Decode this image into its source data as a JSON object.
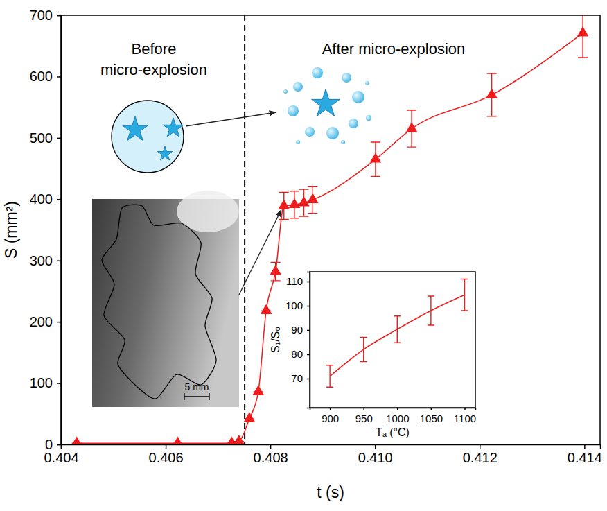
{
  "chart_data": [
    {
      "type": "line",
      "x_label": "t (s)",
      "y_label": "S (mm²)",
      "annotations": [
        "Before micro-explosion",
        "After micro-explosion",
        "5 mm"
      ],
      "x": [
        0.4043,
        0.40623,
        0.40726,
        0.4074,
        0.4076,
        0.40777,
        0.40792,
        0.4081,
        0.40826,
        0.40846,
        0.40864,
        0.40881,
        0.41001,
        0.4107,
        0.41223,
        0.41397
      ],
      "values": [
        2,
        2,
        2,
        5,
        42,
        86,
        218,
        282,
        389,
        391,
        394,
        399,
        465,
        515,
        570,
        671
      ],
      "errors": [
        0,
        0,
        0,
        0,
        0,
        0,
        0,
        15,
        22,
        22,
        22,
        22,
        28,
        30,
        35,
        40
      ],
      "vline_x": 0.40751,
      "color": "#ee1c1c",
      "marker": "triangle",
      "xlim": [
        0.404,
        0.4143
      ],
      "ylim": [
        0,
        700
      ],
      "xticks": [
        0.404,
        0.406,
        0.408,
        {
          "value": 0.41,
          "label": "0.410"
        },
        0.412,
        0.414
      ],
      "yticks": [
        0,
        100,
        200,
        300,
        400,
        500,
        600,
        700
      ]
    },
    {
      "type": "line",
      "x_label": "Tₐ (°C)",
      "y_label": "S₁/S₀",
      "x": [
        900,
        950,
        1000,
        1050,
        1100
      ],
      "values": [
        71,
        82,
        90.3,
        98,
        104.5
      ],
      "errors": [
        4.5,
        5,
        5.5,
        6,
        6.5
      ],
      "color": "#ee1c1c",
      "marker": "none",
      "xlim": [
        870,
        1116
      ],
      "ylim": [
        58,
        114
      ],
      "xticks": [
        900,
        950,
        1000,
        1050,
        1100
      ],
      "yticks": [
        70,
        80,
        90,
        100,
        110
      ]
    }
  ]
}
